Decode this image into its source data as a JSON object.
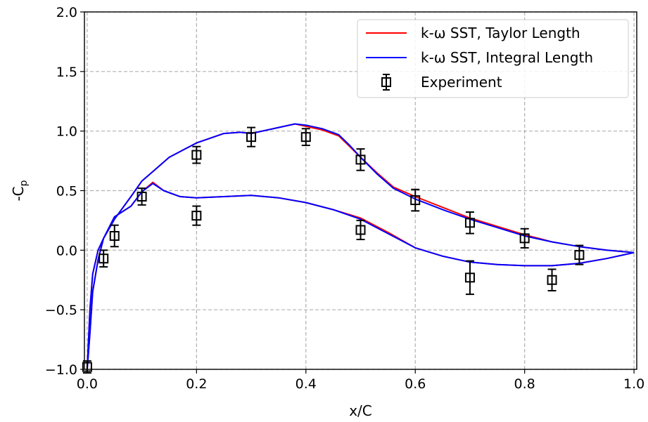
{
  "chart_data": {
    "type": "line",
    "xlabel": "x/C",
    "ylabel_main": "-C",
    "ylabel_sub": "p",
    "xlim": [
      -0.005,
      1.005
    ],
    "ylim": [
      -1.0,
      2.0
    ],
    "x_ticks": [
      0.0,
      0.2,
      0.4,
      0.6,
      0.8,
      1.0
    ],
    "x_tick_labels": [
      "0.0",
      "0.2",
      "0.4",
      "0.6",
      "0.8",
      "1.0"
    ],
    "y_ticks": [
      -1.0,
      -0.5,
      0.0,
      0.5,
      1.0,
      1.5,
      2.0
    ],
    "y_tick_labels": [
      "−1.0",
      "−0.5",
      "0.0",
      "0.5",
      "1.0",
      "1.5",
      "2.0"
    ],
    "grid": true,
    "legend_position": "top-right",
    "series": [
      {
        "name": "k-ω SST, Taylor Length",
        "color": "#ff0000",
        "upper": {
          "x": [
            0.0,
            0.005,
            0.01,
            0.02,
            0.03,
            0.05,
            0.08,
            0.1,
            0.12,
            0.15,
            0.2,
            0.25,
            0.28,
            0.3,
            0.35,
            0.38,
            0.4,
            0.43,
            0.46,
            0.48,
            0.5,
            0.53,
            0.56,
            0.6,
            0.65,
            0.7,
            0.75,
            0.8,
            0.85,
            0.9,
            0.95,
            1.0
          ],
          "y": [
            -1.0,
            -0.5,
            -0.2,
            0.0,
            0.1,
            0.26,
            0.45,
            0.58,
            0.66,
            0.78,
            0.9,
            0.98,
            0.99,
            0.98,
            1.03,
            1.06,
            1.04,
            1.01,
            0.96,
            0.87,
            0.78,
            0.65,
            0.53,
            0.45,
            0.36,
            0.27,
            0.2,
            0.13,
            0.07,
            0.03,
            0.0,
            -0.02
          ]
        },
        "lower": {
          "x": [
            0.0,
            0.005,
            0.01,
            0.02,
            0.03,
            0.05,
            0.08,
            0.1,
            0.12,
            0.14,
            0.17,
            0.2,
            0.25,
            0.3,
            0.35,
            0.4,
            0.45,
            0.5,
            0.55,
            0.6,
            0.65,
            0.7,
            0.75,
            0.8,
            0.85,
            0.9,
            0.95,
            0.98,
            1.0
          ],
          "y": [
            -1.0,
            -0.7,
            -0.35,
            -0.08,
            0.1,
            0.28,
            0.37,
            0.49,
            0.57,
            0.5,
            0.45,
            0.44,
            0.45,
            0.46,
            0.44,
            0.4,
            0.34,
            0.27,
            0.15,
            0.02,
            -0.05,
            -0.1,
            -0.12,
            -0.13,
            -0.13,
            -0.11,
            -0.07,
            -0.04,
            -0.02
          ]
        }
      },
      {
        "name": "k-ω SST, Integral Length",
        "color": "#0000ff",
        "upper": {
          "x": [
            0.0,
            0.005,
            0.01,
            0.02,
            0.03,
            0.05,
            0.08,
            0.1,
            0.12,
            0.15,
            0.2,
            0.25,
            0.28,
            0.3,
            0.35,
            0.38,
            0.4,
            0.43,
            0.46,
            0.48,
            0.5,
            0.53,
            0.56,
            0.6,
            0.65,
            0.7,
            0.75,
            0.8,
            0.85,
            0.9,
            0.95,
            1.0
          ],
          "y": [
            -1.0,
            -0.5,
            -0.2,
            0.0,
            0.1,
            0.26,
            0.45,
            0.58,
            0.66,
            0.78,
            0.9,
            0.98,
            0.99,
            0.98,
            1.03,
            1.06,
            1.05,
            1.02,
            0.97,
            0.88,
            0.78,
            0.64,
            0.52,
            0.43,
            0.34,
            0.26,
            0.19,
            0.12,
            0.07,
            0.03,
            0.0,
            -0.02
          ]
        },
        "lower": {
          "x": [
            0.0,
            0.005,
            0.01,
            0.02,
            0.03,
            0.05,
            0.08,
            0.1,
            0.12,
            0.14,
            0.17,
            0.2,
            0.25,
            0.3,
            0.35,
            0.4,
            0.45,
            0.5,
            0.55,
            0.6,
            0.65,
            0.7,
            0.75,
            0.8,
            0.85,
            0.9,
            0.95,
            0.98,
            1.0
          ],
          "y": [
            -1.0,
            -0.7,
            -0.35,
            -0.08,
            0.1,
            0.28,
            0.37,
            0.49,
            0.56,
            0.5,
            0.45,
            0.44,
            0.45,
            0.46,
            0.44,
            0.4,
            0.34,
            0.26,
            0.14,
            0.02,
            -0.05,
            -0.1,
            -0.12,
            -0.13,
            -0.13,
            -0.11,
            -0.07,
            -0.04,
            -0.02
          ]
        }
      }
    ],
    "experiment": {
      "name": "Experiment",
      "color": "#000000",
      "points": [
        {
          "x": 0.0,
          "y": -0.98,
          "err": 0.05
        },
        {
          "x": 0.03,
          "y": -0.07,
          "err": 0.07
        },
        {
          "x": 0.05,
          "y": 0.12,
          "err": 0.09
        },
        {
          "x": 0.1,
          "y": 0.45,
          "err": 0.07
        },
        {
          "x": 0.2,
          "y": 0.8,
          "err": 0.07
        },
        {
          "x": 0.2,
          "y": 0.29,
          "err": 0.08
        },
        {
          "x": 0.3,
          "y": 0.95,
          "err": 0.08
        },
        {
          "x": 0.4,
          "y": 0.95,
          "err": 0.07
        },
        {
          "x": 0.5,
          "y": 0.76,
          "err": 0.09
        },
        {
          "x": 0.5,
          "y": 0.17,
          "err": 0.08
        },
        {
          "x": 0.6,
          "y": 0.42,
          "err": 0.09
        },
        {
          "x": 0.7,
          "y": 0.23,
          "err": 0.09
        },
        {
          "x": 0.7,
          "y": -0.23,
          "err": 0.14
        },
        {
          "x": 0.8,
          "y": 0.1,
          "err": 0.08
        },
        {
          "x": 0.85,
          "y": -0.25,
          "err": 0.09
        },
        {
          "x": 0.9,
          "y": -0.04,
          "err": 0.08
        }
      ]
    }
  }
}
